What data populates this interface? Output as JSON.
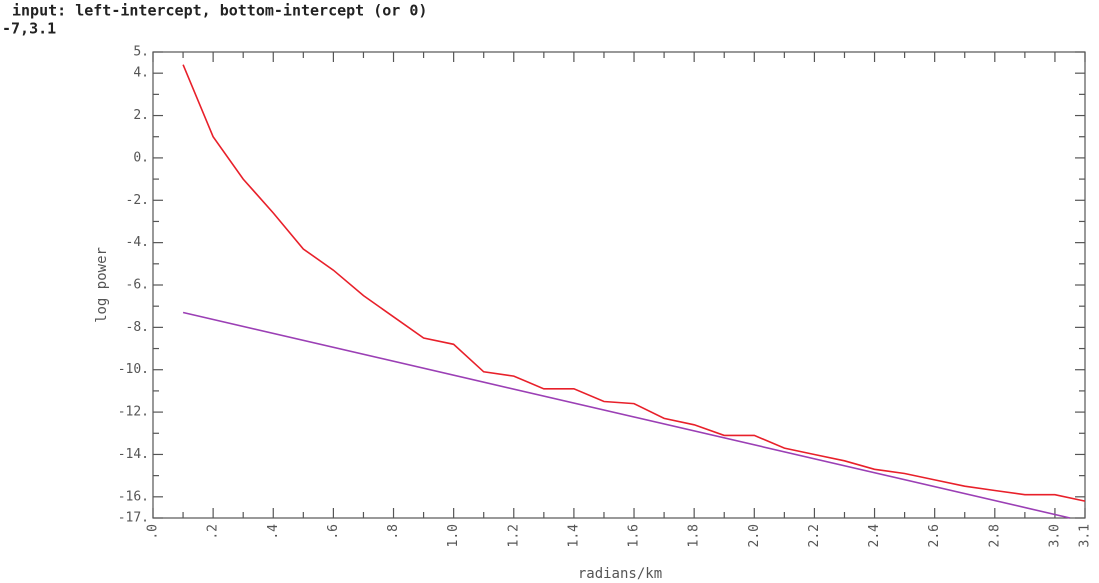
{
  "console": [
    "input: left-intercept, bottom-intercept (or 0)",
    "-7,3.1"
  ],
  "chart_data": {
    "type": "line",
    "xlabel": "radians/km",
    "ylabel": "log power",
    "xlim": [
      0,
      3.1
    ],
    "ylim": [
      -17,
      5
    ],
    "xticks": [
      {
        "value": 0,
        "label": ".0"
      },
      {
        "value": 0.2,
        "label": ".2"
      },
      {
        "value": 0.4,
        "label": ".4"
      },
      {
        "value": 0.6,
        "label": ".6"
      },
      {
        "value": 0.8,
        "label": ".8"
      },
      {
        "value": 1.0,
        "label": "1.0"
      },
      1.2,
      1.4,
      1.6,
      1.8,
      {
        "value": 2.0,
        "label": "2.0"
      },
      2.2,
      2.4,
      2.6,
      2.8,
      {
        "value": 3.0,
        "label": "3.0"
      },
      3.1
    ],
    "yticks": [
      {
        "value": 5,
        "label": "5."
      },
      {
        "value": 4,
        "label": "4."
      },
      {
        "value": 2,
        "label": "2."
      },
      {
        "value": 0,
        "label": "0."
      },
      {
        "value": -2,
        "label": "-2."
      },
      {
        "value": -4,
        "label": "-4."
      },
      {
        "value": -6,
        "label": "-6."
      },
      {
        "value": -8,
        "label": "-8."
      },
      {
        "value": -10,
        "label": "-10."
      },
      {
        "value": -12,
        "label": "-12."
      },
      {
        "value": -14,
        "label": "-14."
      },
      {
        "value": -16,
        "label": "-16."
      },
      {
        "value": -17,
        "label": "-17."
      }
    ],
    "series": [
      {
        "color": "#e8202a",
        "x": [
          0.1,
          0.2,
          0.3,
          0.4,
          0.5,
          0.6,
          0.7,
          0.8,
          0.9,
          1.0,
          1.1,
          1.2,
          1.3,
          1.4,
          1.5,
          1.6,
          1.7,
          1.8,
          1.9,
          2.0,
          2.1,
          2.2,
          2.3,
          2.4,
          2.5,
          2.6,
          2.7,
          2.8,
          2.9,
          3.0,
          3.1
        ],
        "values": [
          4.4,
          1.0,
          -1.0,
          -2.6,
          -4.3,
          -5.3,
          -6.5,
          -7.5,
          -8.5,
          -8.8,
          -10.1,
          -10.3,
          -10.9,
          -10.9,
          -11.5,
          -11.6,
          -12.3,
          -12.6,
          -13.1,
          -13.1,
          -13.7,
          -14.0,
          -14.3,
          -14.7,
          -14.9,
          -15.2,
          -15.5,
          -15.7,
          -15.9,
          -15.9,
          -16.2
        ]
      },
      {
        "color": "#9b3fb5",
        "x": [
          0.1,
          3.05
        ],
        "values": [
          -7.3,
          -17
        ]
      }
    ]
  }
}
